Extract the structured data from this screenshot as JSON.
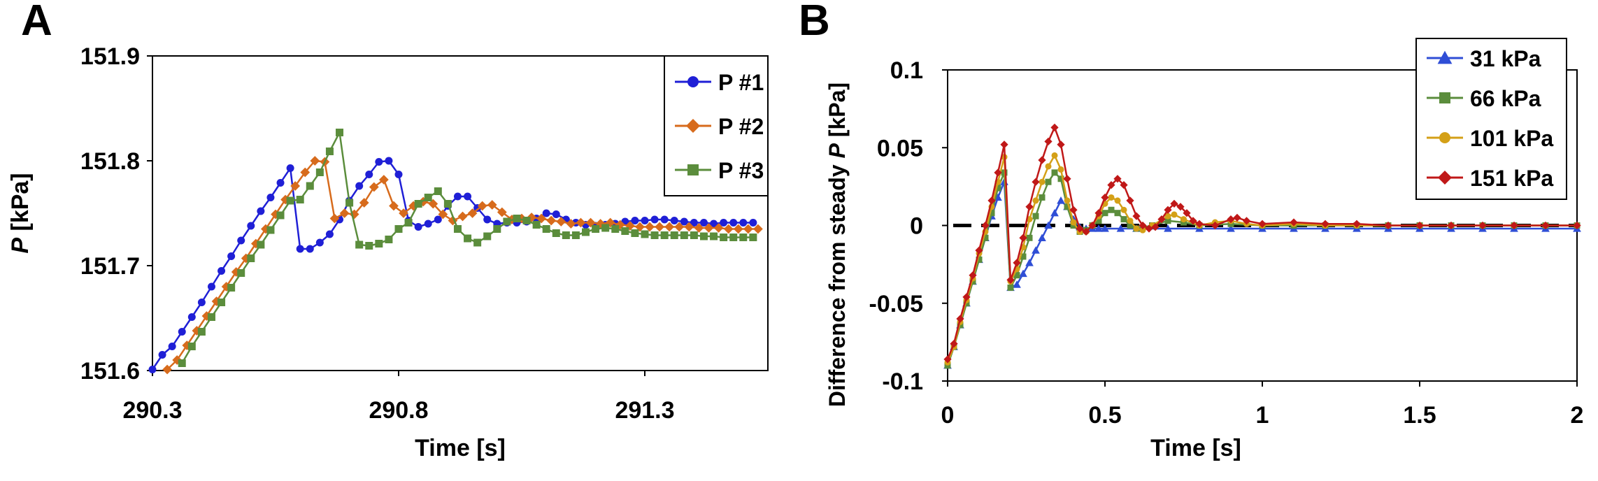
{
  "panels": [
    {
      "panel_label": "A",
      "chart_data": {
        "type": "line",
        "title": "",
        "xlabel": "Time [s]",
        "ylabel_var": "P",
        "ylabel_unit": " [kPa]",
        "xlim": [
          290.3,
          291.55
        ],
        "ylim": [
          151.6,
          151.9
        ],
        "xticks": [
          290.3,
          290.8,
          291.3
        ],
        "xtick_labels": [
          "290.3",
          "290.8",
          "291.3"
        ],
        "yticks": [
          151.6,
          151.7,
          151.8,
          151.9
        ],
        "ytick_labels": [
          "151.6",
          "151.7",
          "151.8",
          "151.9"
        ],
        "grid": false,
        "legend_position": "top-right",
        "series": [
          {
            "name": "P #1",
            "color": "#1f1fd6",
            "marker": "circle",
            "x": [
              290.3,
              290.32,
              290.34,
              290.36,
              290.38,
              290.4,
              290.42,
              290.44,
              290.46,
              290.48,
              290.5,
              290.52,
              290.54,
              290.56,
              290.58,
              290.6,
              290.62,
              290.64,
              290.66,
              290.68,
              290.7,
              290.72,
              290.74,
              290.76,
              290.78,
              290.8,
              290.82,
              290.84,
              290.86,
              290.88,
              290.9,
              290.92,
              290.94,
              290.96,
              290.98,
              291.0,
              291.02,
              291.04,
              291.06,
              291.08,
              291.1,
              291.12,
              291.14,
              291.16,
              291.18,
              291.2,
              291.22,
              291.24,
              291.26,
              291.28,
              291.3,
              291.32,
              291.34,
              291.36,
              291.38,
              291.4,
              291.42,
              291.44,
              291.46,
              291.48,
              291.5,
              291.52
            ],
            "y": [
              151.601,
              151.615,
              151.623,
              151.637,
              151.651,
              151.665,
              151.68,
              151.695,
              151.709,
              151.724,
              151.738,
              151.752,
              151.765,
              151.779,
              151.793,
              151.716,
              151.716,
              151.722,
              151.73,
              151.744,
              151.762,
              151.776,
              151.787,
              151.799,
              151.8,
              151.787,
              151.743,
              151.737,
              151.74,
              151.744,
              151.757,
              151.766,
              151.766,
              151.755,
              151.744,
              151.74,
              151.741,
              151.741,
              151.742,
              151.745,
              151.75,
              151.749,
              151.744,
              151.741,
              151.739,
              151.738,
              151.739,
              151.74,
              151.742,
              151.743,
              151.743,
              151.744,
              151.744,
              151.743,
              151.742,
              151.741,
              151.741,
              151.74,
              151.741,
              151.741,
              151.741,
              151.741
            ]
          },
          {
            "name": "P #2",
            "color": "#d76b1c",
            "marker": "diamond",
            "x": [
              290.33,
              290.35,
              290.37,
              290.39,
              290.41,
              290.43,
              290.45,
              290.47,
              290.49,
              290.51,
              290.53,
              290.55,
              290.57,
              290.59,
              290.61,
              290.63,
              290.65,
              290.67,
              290.69,
              290.71,
              290.73,
              290.75,
              290.77,
              290.79,
              290.81,
              290.83,
              290.85,
              290.87,
              290.89,
              290.91,
              290.93,
              290.95,
              290.97,
              290.99,
              291.01,
              291.03,
              291.05,
              291.07,
              291.09,
              291.11,
              291.13,
              291.15,
              291.17,
              291.19,
              291.21,
              291.23,
              291.25,
              291.27,
              291.29,
              291.31,
              291.33,
              291.35,
              291.37,
              291.39,
              291.41,
              291.43,
              291.45,
              291.47,
              291.49,
              291.51,
              291.53
            ],
            "y": [
              151.601,
              151.61,
              151.624,
              151.638,
              151.652,
              151.666,
              151.68,
              151.694,
              151.707,
              151.721,
              151.735,
              151.749,
              151.763,
              151.776,
              151.789,
              151.8,
              151.799,
              151.745,
              151.75,
              151.749,
              151.76,
              151.775,
              151.782,
              151.757,
              151.75,
              151.757,
              151.761,
              151.759,
              151.749,
              151.743,
              151.747,
              151.75,
              151.757,
              151.758,
              151.751,
              151.744,
              151.745,
              151.746,
              151.745,
              151.743,
              151.742,
              151.74,
              151.741,
              151.741,
              151.74,
              151.741,
              151.739,
              151.738,
              151.737,
              151.737,
              151.737,
              151.737,
              151.737,
              151.737,
              151.736,
              151.736,
              151.736,
              151.735,
              151.735,
              151.735,
              151.735
            ]
          },
          {
            "name": "P #3",
            "color": "#5b8d3c",
            "marker": "square",
            "x": [
              290.36,
              290.38,
              290.4,
              290.42,
              290.44,
              290.46,
              290.48,
              290.5,
              290.52,
              290.54,
              290.56,
              290.58,
              290.6,
              290.62,
              290.64,
              290.66,
              290.68,
              290.7,
              290.72,
              290.74,
              290.76,
              290.78,
              290.8,
              290.82,
              290.84,
              290.86,
              290.88,
              290.9,
              290.92,
              290.94,
              290.96,
              290.98,
              291.0,
              291.02,
              291.04,
              291.06,
              291.08,
              291.1,
              291.12,
              291.14,
              291.16,
              291.18,
              291.2,
              291.22,
              291.24,
              291.26,
              291.28,
              291.3,
              291.32,
              291.34,
              291.36,
              291.38,
              291.4,
              291.42,
              291.44,
              291.46,
              291.48,
              291.5,
              291.52
            ],
            "y": [
              151.607,
              151.623,
              151.637,
              151.651,
              151.665,
              151.679,
              151.693,
              151.707,
              151.72,
              151.734,
              151.748,
              151.762,
              151.763,
              151.776,
              151.789,
              151.809,
              151.827,
              151.76,
              151.72,
              151.719,
              151.721,
              151.725,
              151.735,
              151.741,
              151.759,
              151.765,
              151.771,
              151.759,
              151.735,
              151.726,
              151.722,
              151.728,
              151.735,
              151.742,
              151.745,
              151.743,
              151.739,
              151.735,
              151.731,
              151.729,
              151.729,
              151.732,
              151.735,
              151.736,
              151.735,
              151.733,
              151.731,
              151.73,
              151.729,
              151.729,
              151.729,
              151.729,
              151.729,
              151.728,
              151.728,
              151.727,
              151.727,
              151.727,
              151.727
            ]
          }
        ]
      }
    },
    {
      "panel_label": "B",
      "chart_data": {
        "type": "line",
        "title": "",
        "xlabel": "Time [s]",
        "ylabel_text": "Difference from steady ",
        "ylabel_var": "P",
        "ylabel_unit": " [kPa]",
        "xlim": [
          0,
          2
        ],
        "ylim": [
          -0.1,
          0.1
        ],
        "xticks": [
          0,
          0.5,
          1,
          1.5,
          2
        ],
        "xtick_labels": [
          "0",
          "0.5",
          "1",
          "1.5",
          "2"
        ],
        "yticks": [
          -0.1,
          -0.05,
          0,
          0.05,
          0.1
        ],
        "ytick_labels": [
          "-0.1",
          "-0.05",
          "0",
          "0.05",
          "0.1"
        ],
        "grid": false,
        "legend_position": "top-right",
        "reference_line": {
          "y": 0,
          "style": "dashed",
          "color": "#000000"
        },
        "series": [
          {
            "name": "31 kPa",
            "color": "#2f4ed6",
            "marker": "triangle",
            "x": [
              0,
              0.02,
              0.04,
              0.06,
              0.08,
              0.1,
              0.12,
              0.14,
              0.16,
              0.18,
              0.2,
              0.22,
              0.24,
              0.26,
              0.28,
              0.3,
              0.32,
              0.34,
              0.36,
              0.38,
              0.4,
              0.42,
              0.44,
              0.46,
              0.48,
              0.5,
              0.55,
              0.6,
              0.7,
              0.8,
              0.9,
              1.0,
              1.1,
              1.2,
              1.3,
              1.4,
              1.5,
              1.6,
              1.7,
              1.8,
              1.9,
              2.0
            ],
            "y": [
              -0.09,
              -0.078,
              -0.064,
              -0.05,
              -0.036,
              -0.022,
              -0.008,
              0.006,
              0.018,
              0.028,
              -0.04,
              -0.038,
              -0.031,
              -0.024,
              -0.016,
              -0.008,
              0.0,
              0.008,
              0.016,
              0.012,
              0.004,
              -0.001,
              -0.002,
              -0.002,
              -0.002,
              -0.002,
              -0.002,
              -0.002,
              -0.002,
              -0.002,
              -0.002,
              -0.002,
              -0.002,
              -0.002,
              -0.002,
              -0.002,
              -0.002,
              -0.002,
              -0.002,
              -0.002,
              -0.002,
              -0.002
            ]
          },
          {
            "name": "66 kPa",
            "color": "#5b8d3c",
            "marker": "square",
            "x": [
              0,
              0.02,
              0.04,
              0.06,
              0.08,
              0.1,
              0.12,
              0.14,
              0.16,
              0.18,
              0.2,
              0.22,
              0.24,
              0.26,
              0.28,
              0.3,
              0.32,
              0.34,
              0.36,
              0.38,
              0.4,
              0.42,
              0.44,
              0.46,
              0.48,
              0.5,
              0.52,
              0.54,
              0.56,
              0.58,
              0.6,
              0.65,
              0.7,
              0.75,
              0.8,
              0.9,
              1.0,
              1.1,
              1.2,
              1.3,
              1.4,
              1.5,
              1.6,
              1.7,
              1.8,
              1.9,
              2.0
            ],
            "y": [
              -0.09,
              -0.078,
              -0.064,
              -0.05,
              -0.036,
              -0.022,
              -0.008,
              0.008,
              0.024,
              0.034,
              -0.04,
              -0.032,
              -0.02,
              -0.008,
              0.006,
              0.018,
              0.028,
              0.034,
              0.03,
              0.012,
              0.0,
              -0.004,
              -0.003,
              0.0,
              0.003,
              0.008,
              0.01,
              0.008,
              0.004,
              0.0,
              -0.002,
              0.0,
              0.003,
              0.002,
              0.0,
              0.001,
              0.0,
              0.0,
              0.0,
              0.0,
              0.0,
              0.0,
              0.0,
              0.0,
              0.0,
              0.0,
              0.0
            ]
          },
          {
            "name": "101 kPa",
            "color": "#d4a017",
            "marker": "circle",
            "x": [
              0,
              0.02,
              0.04,
              0.06,
              0.08,
              0.1,
              0.12,
              0.14,
              0.16,
              0.18,
              0.2,
              0.22,
              0.24,
              0.26,
              0.28,
              0.3,
              0.32,
              0.34,
              0.36,
              0.38,
              0.4,
              0.42,
              0.44,
              0.46,
              0.48,
              0.5,
              0.52,
              0.54,
              0.56,
              0.58,
              0.6,
              0.62,
              0.65,
              0.7,
              0.72,
              0.75,
              0.8,
              0.85,
              0.9,
              0.95,
              1.0,
              1.1,
              1.2,
              1.3,
              1.4,
              1.5,
              1.6,
              1.7,
              1.8,
              1.9,
              2.0
            ],
            "y": [
              -0.088,
              -0.078,
              -0.062,
              -0.048,
              -0.034,
              -0.018,
              -0.004,
              0.012,
              0.028,
              0.044,
              -0.036,
              -0.028,
              -0.014,
              0.004,
              0.016,
              0.028,
              0.038,
              0.045,
              0.036,
              0.016,
              0.002,
              -0.004,
              -0.004,
              0.0,
              0.006,
              0.014,
              0.018,
              0.016,
              0.01,
              0.003,
              -0.002,
              -0.003,
              0.0,
              0.006,
              0.007,
              0.004,
              0.0,
              0.002,
              0.003,
              0.001,
              0.0,
              0.001,
              0.0,
              0.0,
              0.0,
              0.0,
              0.0,
              0.0,
              0.0,
              0.0,
              0.0
            ]
          },
          {
            "name": "151 kPa",
            "color": "#c01818",
            "marker": "diamond",
            "x": [
              0,
              0.02,
              0.04,
              0.06,
              0.08,
              0.1,
              0.12,
              0.14,
              0.16,
              0.18,
              0.2,
              0.22,
              0.24,
              0.26,
              0.28,
              0.3,
              0.32,
              0.34,
              0.36,
              0.38,
              0.4,
              0.42,
              0.44,
              0.46,
              0.48,
              0.5,
              0.52,
              0.54,
              0.56,
              0.58,
              0.6,
              0.62,
              0.64,
              0.66,
              0.68,
              0.7,
              0.72,
              0.74,
              0.76,
              0.78,
              0.8,
              0.85,
              0.9,
              0.92,
              0.95,
              1.0,
              1.1,
              1.2,
              1.3,
              1.4,
              1.5,
              1.6,
              1.7,
              1.8,
              1.9,
              2.0
            ],
            "y": [
              -0.086,
              -0.076,
              -0.06,
              -0.046,
              -0.032,
              -0.016,
              0.0,
              0.016,
              0.034,
              0.052,
              -0.035,
              -0.024,
              -0.008,
              0.012,
              0.028,
              0.042,
              0.054,
              0.063,
              0.052,
              0.03,
              0.01,
              -0.002,
              -0.004,
              0.0,
              0.008,
              0.018,
              0.026,
              0.03,
              0.026,
              0.016,
              0.006,
              0.0,
              -0.002,
              -0.001,
              0.004,
              0.01,
              0.014,
              0.012,
              0.008,
              0.003,
              0.001,
              0.0,
              0.004,
              0.005,
              0.003,
              0.001,
              0.002,
              0.001,
              0.001,
              0.0,
              0.0,
              0.0,
              0.0,
              0.0,
              0.0,
              0.0
            ]
          }
        ]
      }
    }
  ]
}
